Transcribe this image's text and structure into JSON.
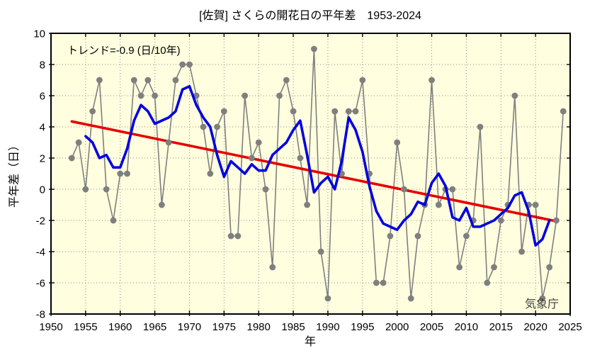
{
  "title": "[佐賀] さくらの開花日の平年差　1953-2024",
  "annotation": {
    "trend_label": "トレンド=-0.9 (日/10年)"
  },
  "credit": "気象庁",
  "colors": {
    "page_bg": "#FFFFFF",
    "plot_bg": "#FFFFE0",
    "annual_series": "#7F7F7F",
    "moving_average": "#0000E0",
    "trend_line": "#E60000",
    "gridline": "#8C8C8C",
    "plot_border": "#000000",
    "text": "#000000",
    "credit_text": "#3C3C3C"
  },
  "chart_data": {
    "type": "line",
    "title": "[佐賀] さくらの開花日の平年差　1953-2024",
    "xlabel": "年",
    "ylabel": "平年差（日）",
    "xlim": [
      1950,
      2025
    ],
    "ylim": [
      -8,
      10
    ],
    "x_ticks": [
      1950,
      1955,
      1960,
      1965,
      1970,
      1975,
      1980,
      1985,
      1990,
      1995,
      2000,
      2005,
      2010,
      2015,
      2020,
      2025
    ],
    "y_ticks": [
      -8,
      -6,
      -4,
      -2,
      0,
      2,
      4,
      6,
      8,
      10
    ],
    "grid": true,
    "legend_position": "none",
    "x": [
      1953,
      1954,
      1955,
      1956,
      1957,
      1958,
      1959,
      1960,
      1961,
      1962,
      1963,
      1964,
      1965,
      1966,
      1967,
      1968,
      1969,
      1970,
      1971,
      1972,
      1973,
      1974,
      1975,
      1976,
      1977,
      1978,
      1979,
      1980,
      1981,
      1982,
      1983,
      1984,
      1985,
      1986,
      1987,
      1988,
      1989,
      1990,
      1991,
      1992,
      1993,
      1994,
      1995,
      1996,
      1997,
      1998,
      1999,
      2000,
      2001,
      2002,
      2003,
      2004,
      2005,
      2006,
      2007,
      2008,
      2009,
      2010,
      2011,
      2012,
      2013,
      2014,
      2015,
      2016,
      2017,
      2018,
      2019,
      2020,
      2021,
      2022,
      2023,
      2024
    ],
    "series": [
      {
        "name": "annual_anomaly_days",
        "style": "line_with_markers",
        "values": [
          2,
          3,
          0,
          5,
          7,
          0,
          -2,
          1,
          1,
          7,
          6,
          7,
          6,
          -1,
          3,
          7,
          8,
          8,
          6,
          4,
          1,
          4,
          5,
          -3,
          -3,
          6,
          2,
          3,
          0,
          -5,
          6,
          7,
          5,
          2,
          -1,
          9,
          -4,
          -7,
          5,
          1,
          5,
          5,
          7,
          1,
          -6,
          -6,
          -3,
          3,
          0,
          -7,
          -3,
          -1,
          7,
          -1,
          0,
          0,
          -5,
          -3,
          -2,
          4,
          -6,
          -5,
          -2,
          -1,
          6,
          -4,
          -1,
          -1,
          -7,
          -5,
          -2,
          5
        ]
      },
      {
        "name": "five_year_running_mean",
        "style": "line",
        "derived_from": "annual_anomaly_days",
        "window": 5
      },
      {
        "name": "linear_trend",
        "style": "line",
        "slope_days_per_decade": -0.9,
        "points": [
          [
            1953,
            4.35
          ],
          [
            2023,
            -2.05
          ]
        ]
      }
    ]
  }
}
